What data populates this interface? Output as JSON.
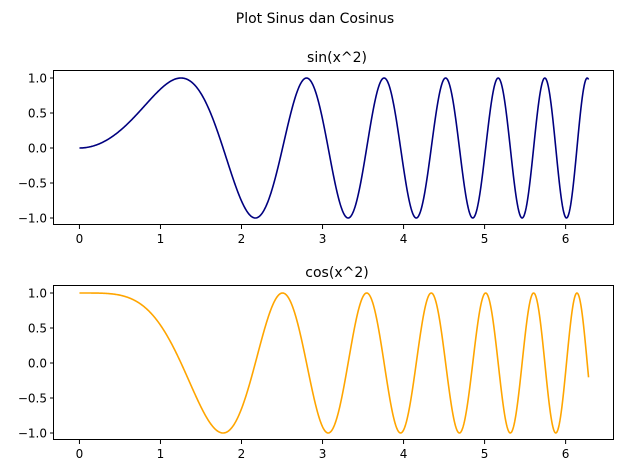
{
  "chart_data": {
    "suptitle": "Plot Sinus dan Cosinus",
    "charts": [
      {
        "type": "line",
        "title": "sin(x^2)",
        "function": "sin",
        "series": [
          {
            "name": "sin(x^2)",
            "color": "#00007f",
            "x_start": 0,
            "x_end": 6.283,
            "samples": 800
          }
        ],
        "xlim": [
          -0.314,
          6.597
        ],
        "ylim": [
          -1.1,
          1.1
        ],
        "x_ticks": [
          0,
          1,
          2,
          3,
          4,
          5,
          6
        ],
        "x_tick_labels": [
          "0",
          "1",
          "2",
          "3",
          "4",
          "5",
          "6"
        ],
        "y_ticks": [
          1.0,
          0.5,
          0.0,
          -0.5,
          -1.0
        ],
        "y_tick_labels": [
          "1.0",
          "0.5",
          "0.0",
          "−0.5",
          "−1.0"
        ],
        "xlabel": "",
        "ylabel": "",
        "grid": false
      },
      {
        "type": "line",
        "title": "cos(x^2)",
        "function": "cos",
        "series": [
          {
            "name": "cos(x^2)",
            "color": "#ffa500",
            "x_start": 0,
            "x_end": 6.283,
            "samples": 800
          }
        ],
        "xlim": [
          -0.314,
          6.597
        ],
        "ylim": [
          -1.1,
          1.1
        ],
        "x_ticks": [
          0,
          1,
          2,
          3,
          4,
          5,
          6
        ],
        "x_tick_labels": [
          "0",
          "1",
          "2",
          "3",
          "4",
          "5",
          "6"
        ],
        "y_ticks": [
          1.0,
          0.5,
          0.0,
          -0.5,
          -1.0
        ],
        "y_tick_labels": [
          "1.0",
          "0.5",
          "0.0",
          "−0.5",
          "−1.0"
        ],
        "xlabel": "",
        "ylabel": "",
        "grid": false
      }
    ]
  }
}
